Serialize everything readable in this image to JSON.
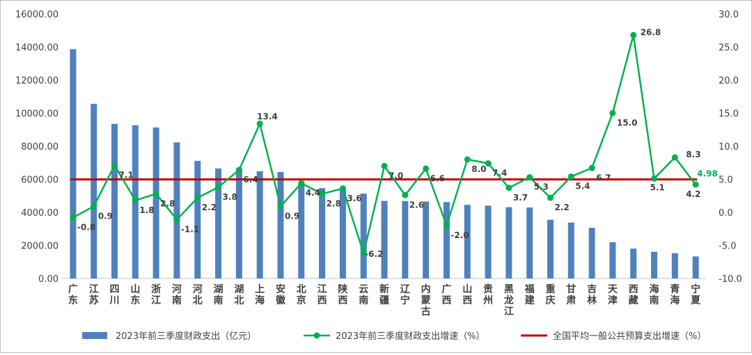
{
  "chart_data": {
    "type": "bar+line",
    "categories": [
      "广东",
      "江苏",
      "四川",
      "山东",
      "浙江",
      "河南",
      "河北",
      "湖南",
      "湖北",
      "上海",
      "安徽",
      "北京",
      "江西",
      "陕西",
      "云南",
      "新疆",
      "辽宁",
      "内蒙古",
      "广西",
      "山西",
      "贵州",
      "黑龙江",
      "福建",
      "重庆",
      "甘肃",
      "吉林",
      "天津",
      "西藏",
      "海南",
      "青海",
      "宁夏"
    ],
    "series": [
      {
        "name": "2023年前三季度财政支出（亿元）",
        "type": "bar",
        "axis": "left",
        "color": "#4f81bd",
        "values": [
          13870,
          10560,
          9350,
          9270,
          9130,
          8230,
          7110,
          6650,
          6580,
          6480,
          6440,
          5800,
          5460,
          5430,
          5130,
          4690,
          4680,
          4650,
          4620,
          4450,
          4400,
          4310,
          4290,
          3550,
          3380,
          3060,
          2190,
          1800,
          1610,
          1530,
          1330
        ]
      },
      {
        "name": "2023年前三季度财政支出增速（%）",
        "type": "line",
        "axis": "right",
        "color": "#00b050",
        "values": [
          -0.8,
          0.9,
          7.1,
          1.8,
          2.8,
          -1.1,
          2.2,
          3.8,
          6.4,
          13.4,
          0.9,
          4.4,
          2.8,
          3.6,
          -6.2,
          7.0,
          2.6,
          6.6,
          -2.0,
          8.0,
          7.4,
          3.7,
          5.3,
          2.2,
          5.4,
          6.7,
          15.0,
          26.8,
          5.1,
          8.3,
          4.2
        ],
        "labels": [
          "-0.8",
          "0.9",
          "7.1",
          "1.8",
          "2.8",
          "-1.1",
          "2.2",
          "3.8",
          "6.4",
          "13.4",
          "0.9",
          "4.4",
          "2.8",
          "3.6",
          "-6.2",
          "7.0",
          "2.6",
          "6.6",
          "-2.0",
          "8.0",
          "7.4",
          "3.7",
          "5.3",
          "2.2",
          "5.4",
          "6.7",
          "15.0",
          "26.8",
          "5.1",
          "8.3",
          "4.2"
        ]
      },
      {
        "name": "全国平均一般公共预算支出增速（%）",
        "type": "hline",
        "axis": "right",
        "color": "#c00000",
        "value": 4.98,
        "label": "4.98",
        "label_color": "#00b050"
      }
    ],
    "y_left": {
      "min": 0,
      "max": 16000,
      "step": 2000,
      "ticks": [
        "0.00",
        "2000.00",
        "4000.00",
        "6000.00",
        "8000.00",
        "10000.00",
        "12000.00",
        "14000.00",
        "16000.00"
      ]
    },
    "y_right": {
      "min": -10,
      "max": 30,
      "step": 5,
      "ticks": [
        "-10.0",
        "-5.0",
        "0.0",
        "5.0",
        "10.0",
        "15.0",
        "20.0",
        "25.0",
        "30.0"
      ]
    },
    "grid": false,
    "legend_position": "bottom",
    "title": ""
  }
}
